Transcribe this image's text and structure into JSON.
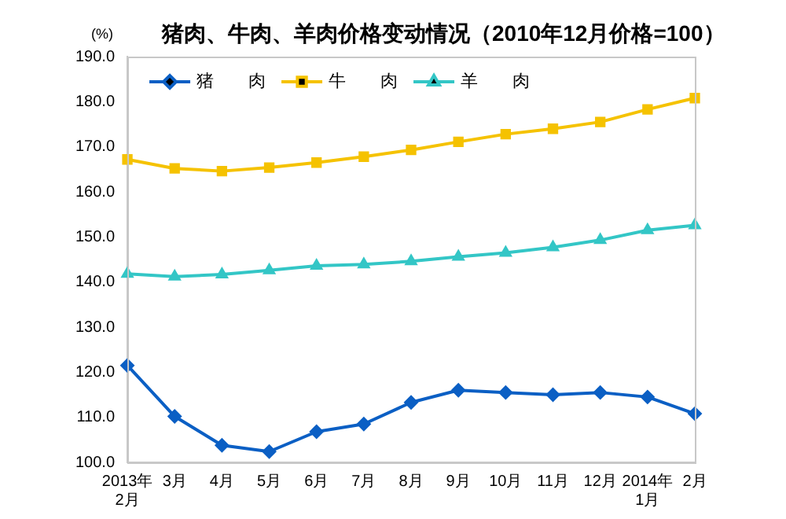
{
  "chart_data": {
    "type": "line",
    "title": "猪肉、牛肉、羊肉价格变动情况（2010年12月价格=100）",
    "ylabel": "(%)",
    "categories": [
      "2013年\n2月",
      "3月",
      "4月",
      "5月",
      "6月",
      "7月",
      "8月",
      "9月",
      "10月",
      "11月",
      "12月",
      "2014年\n1月",
      "2月"
    ],
    "series": [
      {
        "name": "猪　　肉",
        "color": "#0b5fc4",
        "marker": "diamond",
        "values": [
          121.5,
          110.2,
          103.8,
          102.4,
          106.8,
          108.5,
          113.3,
          116.0,
          115.5,
          115.0,
          115.5,
          114.5,
          110.8
        ]
      },
      {
        "name": "牛　　肉",
        "color": "#f5c200",
        "marker": "square",
        "values": [
          167.2,
          165.2,
          164.6,
          165.4,
          166.5,
          167.8,
          169.3,
          171.1,
          172.8,
          174.0,
          175.5,
          178.3,
          180.8
        ]
      },
      {
        "name": "羊　　肉",
        "color": "#33c6c6",
        "marker": "triangle",
        "values": [
          141.8,
          141.2,
          141.7,
          142.6,
          143.6,
          143.9,
          144.6,
          145.6,
          146.5,
          147.7,
          149.3,
          151.5,
          152.6
        ]
      }
    ],
    "ylim": [
      100,
      190
    ],
    "yticks": [
      {
        "value": 100,
        "label": "100.0"
      },
      {
        "value": 110,
        "label": "110.0"
      },
      {
        "value": 120,
        "label": "120.0"
      },
      {
        "value": 130,
        "label": "130.0"
      },
      {
        "value": 140,
        "label": "140.0"
      },
      {
        "value": 150,
        "label": "150.0"
      },
      {
        "value": 160,
        "label": "160.0"
      },
      {
        "value": 170,
        "label": "170.0"
      },
      {
        "value": 180,
        "label": "180.0"
      },
      {
        "value": 190,
        "label": "190.0"
      }
    ],
    "grid": false,
    "legend": "top left",
    "line_style": "solid"
  }
}
